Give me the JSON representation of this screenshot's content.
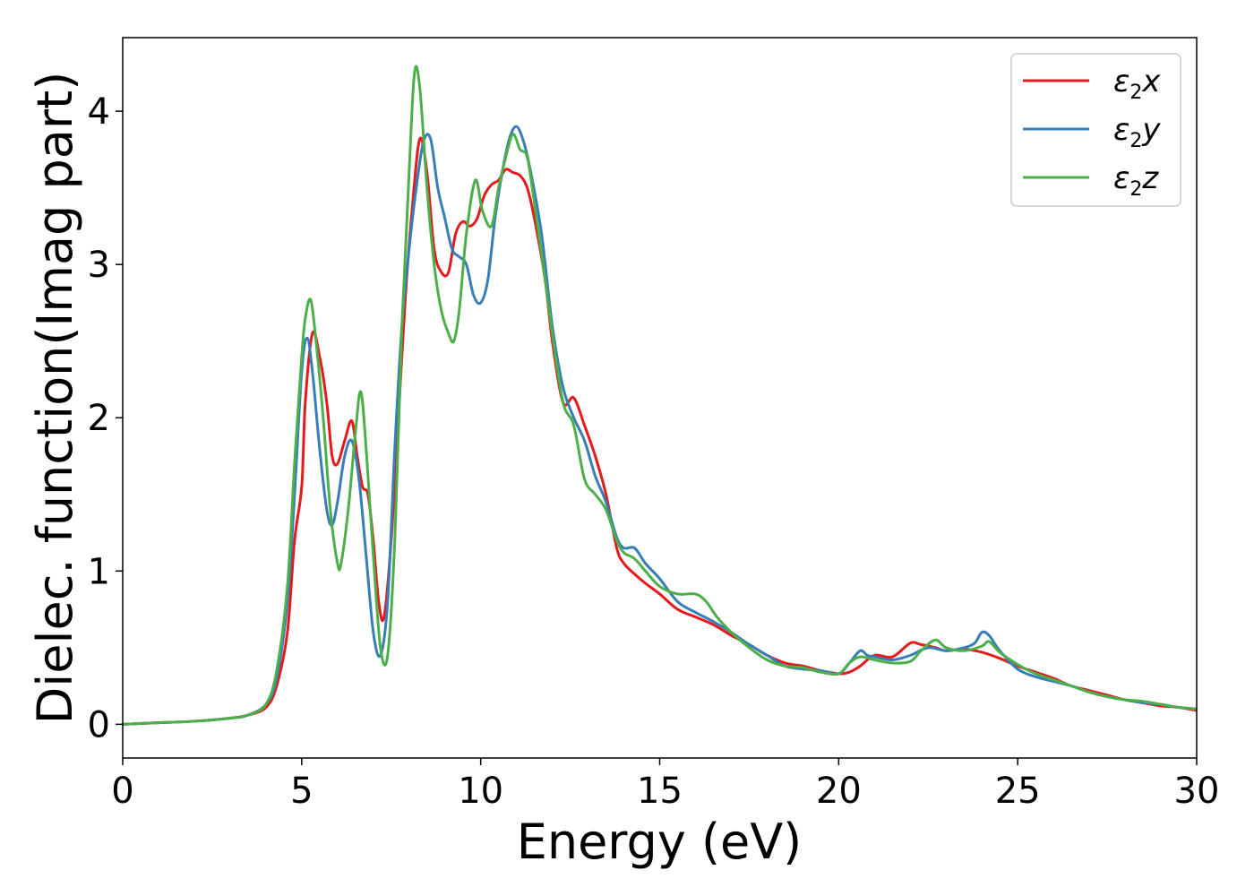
{
  "chart_data": {
    "type": "line",
    "xlabel": "Energy (eV)",
    "ylabel": "Dielec. function(Imag part)",
    "xlim": [
      0,
      30
    ],
    "ylim": [
      -0.22,
      4.48
    ],
    "xticks": [
      0,
      5,
      10,
      15,
      20,
      25,
      30
    ],
    "yticks": [
      0,
      1,
      2,
      3,
      4
    ],
    "grid": false,
    "legend_position": "top-right",
    "series": [
      {
        "name": "ε2x",
        "legend_base": "ε",
        "legend_sub": "2",
        "legend_var": "x",
        "color": "#e41a1c",
        "x": [
          0,
          1,
          2,
          3,
          3.5,
          4,
          4.3,
          4.6,
          4.8,
          5.0,
          5.1,
          5.3,
          5.5,
          5.7,
          5.85,
          6.0,
          6.2,
          6.4,
          6.55,
          6.7,
          6.85,
          7.0,
          7.15,
          7.3,
          7.5,
          7.7,
          7.9,
          8.1,
          8.3,
          8.5,
          8.7,
          8.9,
          9.1,
          9.3,
          9.5,
          9.7,
          9.9,
          10.1,
          10.3,
          10.5,
          10.7,
          10.9,
          11.1,
          11.3,
          11.5,
          11.8,
          12.0,
          12.3,
          12.6,
          12.9,
          13.2,
          13.5,
          13.8,
          14.0,
          14.3,
          14.6,
          15.0,
          15.5,
          16.0,
          16.5,
          17.0,
          17.5,
          18.0,
          18.5,
          19.0,
          19.5,
          20.0,
          20.3,
          20.6,
          21.0,
          21.5,
          22.0,
          22.3,
          22.7,
          23.0,
          23.5,
          24.0,
          24.5,
          25.0,
          25.5,
          26.0,
          26.5,
          27.0,
          27.5,
          28.0,
          28.5,
          29.0,
          29.5,
          30.0
        ],
        "values": [
          0,
          0.01,
          0.02,
          0.04,
          0.06,
          0.11,
          0.25,
          0.6,
          1.2,
          1.55,
          2.1,
          2.55,
          2.4,
          2.1,
          1.75,
          1.7,
          1.85,
          1.98,
          1.75,
          1.55,
          1.5,
          1.2,
          0.8,
          0.7,
          1.2,
          2.0,
          2.8,
          3.4,
          3.82,
          3.6,
          3.1,
          2.95,
          2.95,
          3.2,
          3.28,
          3.25,
          3.3,
          3.45,
          3.52,
          3.55,
          3.62,
          3.6,
          3.58,
          3.5,
          3.3,
          2.9,
          2.5,
          2.1,
          2.13,
          1.95,
          1.75,
          1.5,
          1.15,
          1.05,
          0.98,
          0.92,
          0.85,
          0.75,
          0.7,
          0.65,
          0.58,
          0.52,
          0.45,
          0.4,
          0.38,
          0.35,
          0.33,
          0.34,
          0.38,
          0.45,
          0.44,
          0.53,
          0.52,
          0.5,
          0.48,
          0.49,
          0.47,
          0.43,
          0.38,
          0.34,
          0.3,
          0.25,
          0.22,
          0.19,
          0.16,
          0.14,
          0.12,
          0.11,
          0.09
        ]
      },
      {
        "name": "ε2y",
        "legend_base": "ε",
        "legend_sub": "2",
        "legend_var": "y",
        "color": "#377eb8",
        "x": [
          0,
          1,
          2,
          3,
          3.5,
          4,
          4.3,
          4.6,
          4.8,
          5.0,
          5.15,
          5.3,
          5.5,
          5.7,
          5.85,
          6.0,
          6.2,
          6.4,
          6.6,
          6.8,
          7.0,
          7.2,
          7.4,
          7.6,
          7.8,
          8.0,
          8.2,
          8.4,
          8.6,
          8.8,
          9.0,
          9.2,
          9.4,
          9.6,
          9.8,
          10.0,
          10.2,
          10.4,
          10.6,
          10.8,
          11.0,
          11.2,
          11.4,
          11.7,
          12.0,
          12.3,
          12.6,
          12.9,
          13.2,
          13.5,
          13.8,
          14.0,
          14.3,
          14.6,
          15.0,
          15.5,
          16.0,
          16.5,
          17.0,
          17.5,
          18.0,
          18.5,
          19.0,
          19.5,
          20.0,
          20.3,
          20.6,
          20.8,
          21.0,
          21.5,
          22.0,
          22.5,
          23.0,
          23.5,
          23.8,
          24.0,
          24.2,
          24.5,
          25.0,
          25.5,
          26.0,
          26.5,
          27.0,
          27.5,
          28.0,
          28.5,
          29.0,
          29.5,
          30.0
        ],
        "values": [
          0,
          0.01,
          0.02,
          0.04,
          0.06,
          0.13,
          0.3,
          0.8,
          1.5,
          2.3,
          2.52,
          2.3,
          1.8,
          1.4,
          1.3,
          1.45,
          1.75,
          1.85,
          1.6,
          1.1,
          0.6,
          0.45,
          0.8,
          1.8,
          2.6,
          3.1,
          3.5,
          3.8,
          3.82,
          3.5,
          3.3,
          3.1,
          3.05,
          3.0,
          2.8,
          2.75,
          2.9,
          3.3,
          3.6,
          3.82,
          3.9,
          3.8,
          3.6,
          3.2,
          2.6,
          2.2,
          2.0,
          1.85,
          1.62,
          1.45,
          1.22,
          1.15,
          1.15,
          1.05,
          0.95,
          0.8,
          0.73,
          0.67,
          0.6,
          0.52,
          0.45,
          0.38,
          0.36,
          0.35,
          0.33,
          0.4,
          0.48,
          0.45,
          0.44,
          0.42,
          0.45,
          0.5,
          0.48,
          0.5,
          0.53,
          0.6,
          0.58,
          0.48,
          0.36,
          0.31,
          0.28,
          0.25,
          0.21,
          0.18,
          0.16,
          0.14,
          0.13,
          0.11,
          0.1
        ]
      },
      {
        "name": "ε2z",
        "legend_base": "ε",
        "legend_sub": "2",
        "legend_var": "z",
        "color": "#4daf4a",
        "x": [
          0,
          1,
          2,
          3,
          3.5,
          4,
          4.3,
          4.6,
          4.8,
          5.0,
          5.1,
          5.25,
          5.4,
          5.6,
          5.8,
          6.0,
          6.1,
          6.3,
          6.5,
          6.65,
          6.8,
          7.0,
          7.2,
          7.4,
          7.6,
          7.8,
          8.0,
          8.15,
          8.3,
          8.5,
          8.7,
          8.9,
          9.1,
          9.25,
          9.4,
          9.6,
          9.85,
          10.05,
          10.3,
          10.5,
          10.7,
          10.9,
          11.1,
          11.3,
          11.5,
          11.8,
          12.0,
          12.3,
          12.6,
          12.9,
          13.2,
          13.5,
          13.8,
          14.0,
          14.3,
          14.6,
          15.0,
          15.5,
          16.0,
          16.3,
          16.6,
          17.0,
          17.5,
          18.0,
          18.5,
          19.0,
          19.5,
          20.0,
          20.3,
          20.6,
          21.0,
          21.5,
          22.0,
          22.3,
          22.7,
          23.0,
          23.5,
          24.0,
          24.2,
          24.5,
          25.0,
          25.5,
          26.0,
          26.5,
          27.0,
          27.5,
          28.0,
          28.5,
          29.0,
          29.5,
          30.0
        ],
        "values": [
          0,
          0.01,
          0.02,
          0.04,
          0.06,
          0.13,
          0.35,
          0.9,
          1.7,
          2.4,
          2.65,
          2.77,
          2.5,
          2.0,
          1.4,
          1.05,
          1.05,
          1.4,
          1.9,
          2.17,
          1.8,
          1.1,
          0.5,
          0.45,
          1.2,
          2.6,
          3.6,
          4.25,
          4.15,
          3.5,
          3.0,
          2.7,
          2.55,
          2.5,
          2.7,
          3.2,
          3.55,
          3.35,
          3.25,
          3.5,
          3.7,
          3.85,
          3.75,
          3.7,
          3.4,
          2.9,
          2.55,
          2.1,
          1.95,
          1.6,
          1.5,
          1.4,
          1.2,
          1.12,
          1.08,
          1.0,
          0.9,
          0.85,
          0.85,
          0.8,
          0.7,
          0.6,
          0.5,
          0.42,
          0.38,
          0.37,
          0.34,
          0.33,
          0.4,
          0.44,
          0.42,
          0.4,
          0.41,
          0.48,
          0.55,
          0.5,
          0.48,
          0.51,
          0.54,
          0.47,
          0.39,
          0.33,
          0.29,
          0.25,
          0.21,
          0.18,
          0.16,
          0.15,
          0.13,
          0.11,
          0.1
        ]
      }
    ]
  }
}
